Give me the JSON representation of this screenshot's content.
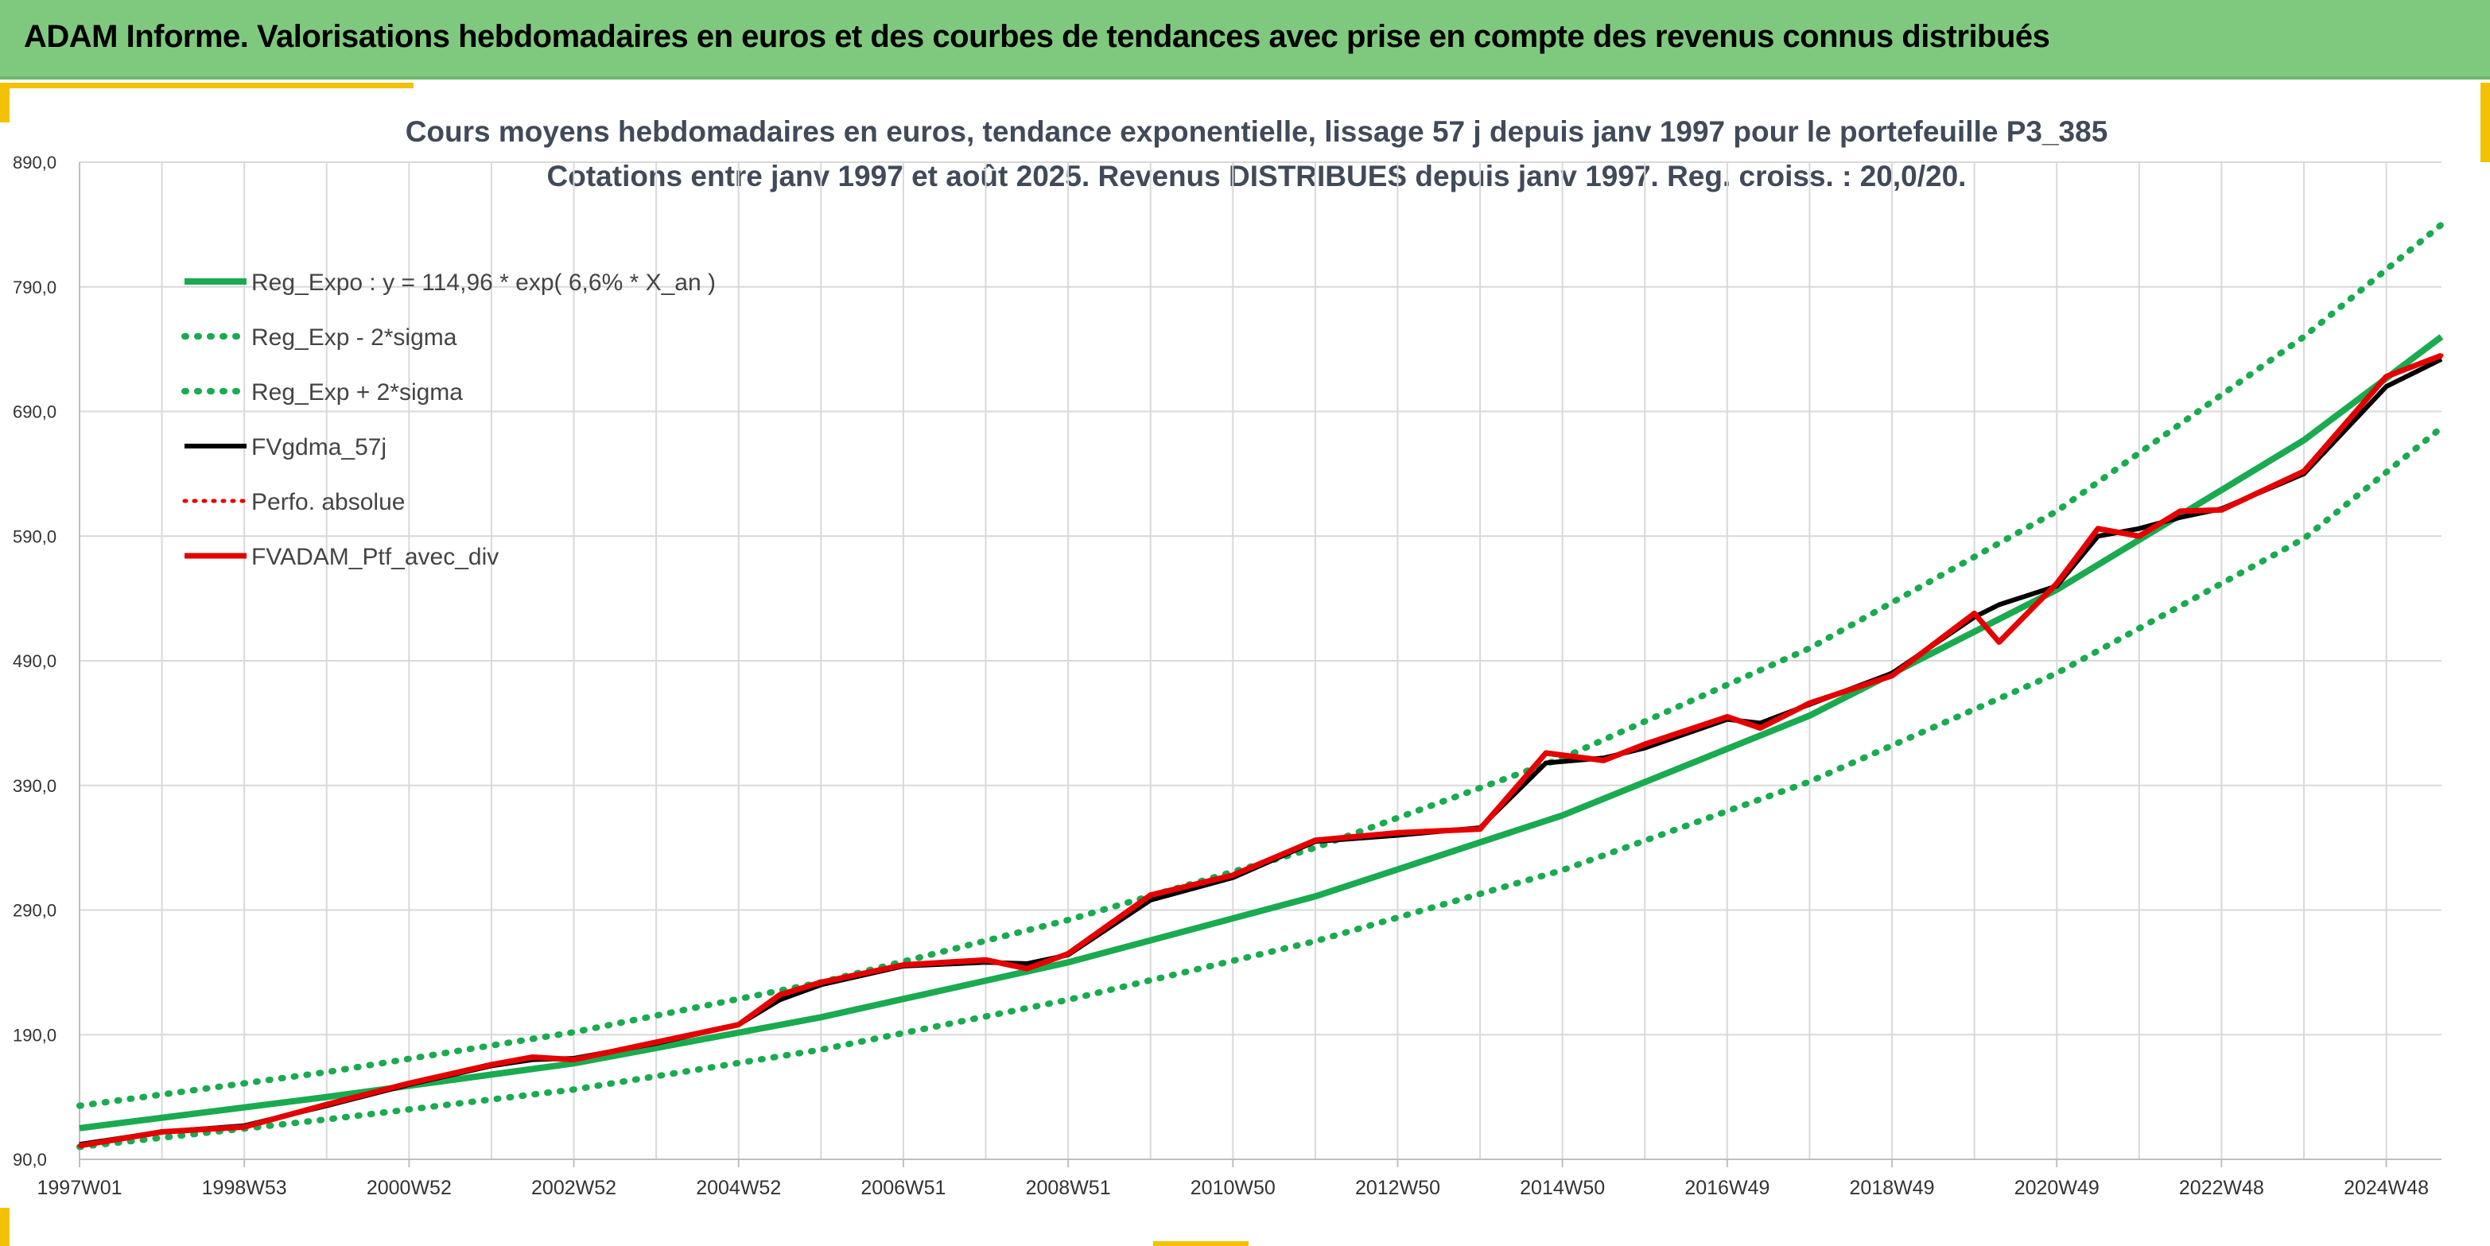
{
  "header": {
    "title": "ADAM Informe. Valorisations hebdomadaires en euros et des courbes de tendances avec prise en compte des revenus connus distribués"
  },
  "colors": {
    "header_bg": "#7fc97f",
    "accent": "#f2c200",
    "trend_green": "#1aaa50",
    "portfolio_red": "#e50000",
    "smoothed_black": "#000000",
    "grid": "#d9d9d9"
  },
  "chart_data": {
    "type": "line",
    "title": "Cours moyens hebdomadaires en euros, tendance exponentielle, lissage 57 j depuis janv 1997 pour le portefeuille P3_385",
    "subtitle": "Cotations entre janv 1997 et août 2025. Revenus DISTRIBUES depuis janv 1997. Reg. croiss. : 20,0/20.",
    "xlabel": "",
    "ylabel": "",
    "x_range_years": [
      1997.0,
      2025.67
    ],
    "ylim": [
      90,
      890
    ],
    "y_ticks": [
      "890,0",
      "790,0",
      "690,0",
      "590,0",
      "490,0",
      "390,0",
      "290,0",
      "190,0",
      "90,0"
    ],
    "y_tick_values": [
      890,
      790,
      690,
      590,
      490,
      390,
      290,
      190,
      90
    ],
    "x_ticks": [
      "1997W01",
      "1998W53",
      "2000W52",
      "2002W52",
      "2004W52",
      "2006W51",
      "2008W51",
      "2010W50",
      "2012W50",
      "2014W50",
      "2016W49",
      "2018W49",
      "2020W49",
      "2022W48",
      "2024W48"
    ],
    "x_tick_years": [
      1997.0,
      1999.0,
      2001.0,
      2003.0,
      2005.0,
      2007.0,
      2009.0,
      2011.0,
      2013.0,
      2015.0,
      2017.0,
      2019.0,
      2021.0,
      2023.0,
      2025.0
    ],
    "grid": true,
    "legend_position": "top-left",
    "series": [
      {
        "name": "Reg_Expo : y = 114,96 * exp( 6,6% *  X_an )",
        "style": "solid",
        "color": "#1aaa50",
        "x": [
          1997.0,
          2000.0,
          2003.0,
          2006.0,
          2009.0,
          2012.0,
          2015.0,
          2018.0,
          2021.0,
          2024.0,
          2025.67
        ],
        "values": [
          115,
          140,
          167,
          204,
          248,
          301,
          366,
          446,
          547,
          667,
          750
        ]
      },
      {
        "name": "Reg_Exp - 2*sigma",
        "style": "dotted",
        "color": "#1aaa50",
        "x": [
          1997.0,
          2000.0,
          2003.0,
          2006.0,
          2009.0,
          2012.0,
          2015.0,
          2018.0,
          2021.0,
          2024.0,
          2025.67
        ],
        "values": [
          100,
          122,
          146,
          178,
          218,
          265,
          322,
          393,
          480,
          588,
          677
        ]
      },
      {
        "name": "Reg_Exp + 2*sigma",
        "style": "dotted",
        "color": "#1aaa50",
        "x": [
          1997.0,
          2000.0,
          2003.0,
          2006.0,
          2009.0,
          2012.0,
          2015.0,
          2018.0,
          2021.0,
          2024.0,
          2025.67
        ],
        "values": [
          133,
          160,
          192,
          232,
          282,
          340,
          412,
          500,
          610,
          750,
          840
        ]
      },
      {
        "name": "FVgdma_57j",
        "style": "solid",
        "color": "#000000",
        "x": [
          1997.0,
          1998.0,
          1999.0,
          2000.0,
          2001.0,
          2002.0,
          2002.5,
          2003.0,
          2004.0,
          2005.0,
          2005.5,
          2006.0,
          2007.0,
          2008.0,
          2008.5,
          2009.0,
          2010.0,
          2011.0,
          2012.0,
          2013.0,
          2014.0,
          2014.8,
          2015.5,
          2016.0,
          2017.0,
          2017.4,
          2018.0,
          2019.0,
          2020.0,
          2020.3,
          2021.0,
          2021.5,
          2022.0,
          2022.5,
          2023.0,
          2024.0,
          2025.0,
          2025.67
        ],
        "values": [
          102,
          112,
          117,
          133,
          150,
          165,
          170,
          171,
          183,
          198,
          218,
          230,
          245,
          248,
          247,
          254,
          298,
          316,
          345,
          350,
          356,
          408,
          412,
          420,
          443,
          440,
          455,
          480,
          525,
          535,
          550,
          590,
          596,
          605,
          612,
          640,
          710,
          732
        ]
      },
      {
        "name": "Perfo. absolue",
        "style": "dotted",
        "color": "#e50000",
        "x": [
          1997.0,
          1998.0,
          1999.0,
          2000.0,
          2001.0,
          2002.0,
          2002.5,
          2003.0,
          2004.0,
          2005.0,
          2005.5,
          2006.0,
          2007.0,
          2008.0,
          2008.5,
          2009.0,
          2010.0,
          2011.0,
          2012.0,
          2013.0,
          2014.0,
          2014.8,
          2015.5,
          2016.0,
          2017.0,
          2017.4,
          2018.0,
          2019.0,
          2020.0,
          2020.3,
          2021.0,
          2021.5,
          2022.0,
          2022.5,
          2023.0,
          2024.0,
          2025.0,
          2025.67
        ],
        "values": [
          101,
          112,
          116,
          134,
          151,
          166,
          172,
          170,
          184,
          198,
          222,
          232,
          246,
          250,
          243,
          255,
          302,
          318,
          346,
          352,
          355,
          416,
          410,
          423,
          445,
          436,
          456,
          478,
          528,
          505,
          552,
          596,
          590,
          610,
          611,
          642,
          718,
          735
        ]
      },
      {
        "name": "FVADAM_Ptf_avec_div",
        "style": "solid",
        "color": "#e50000",
        "x": [
          1997.0,
          1998.0,
          1999.0,
          2000.0,
          2001.0,
          2002.0,
          2002.5,
          2003.0,
          2004.0,
          2005.0,
          2005.5,
          2006.0,
          2007.0,
          2008.0,
          2008.5,
          2009.0,
          2010.0,
          2011.0,
          2012.0,
          2013.0,
          2014.0,
          2014.8,
          2015.5,
          2016.0,
          2017.0,
          2017.4,
          2018.0,
          2019.0,
          2020.0,
          2020.3,
          2021.0,
          2021.5,
          2022.0,
          2022.5,
          2023.0,
          2024.0,
          2025.0,
          2025.67
        ],
        "values": [
          101,
          112,
          116,
          134,
          151,
          166,
          172,
          170,
          184,
          198,
          222,
          232,
          246,
          250,
          243,
          255,
          302,
          318,
          346,
          352,
          355,
          416,
          410,
          423,
          445,
          436,
          456,
          478,
          528,
          505,
          552,
          596,
          590,
          610,
          611,
          642,
          718,
          735
        ]
      }
    ]
  }
}
